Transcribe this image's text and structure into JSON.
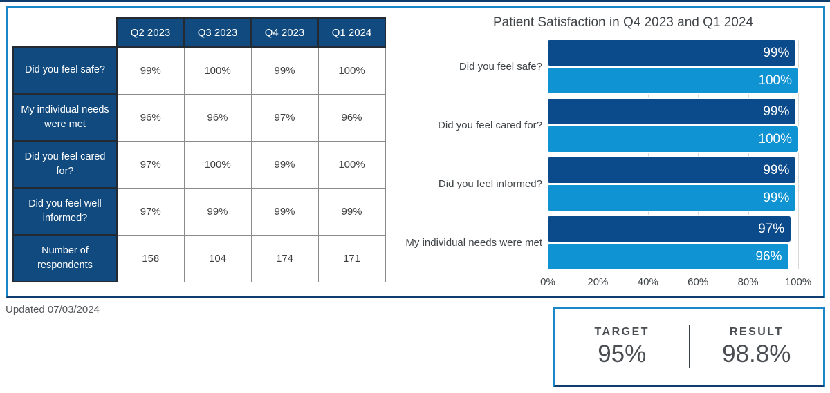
{
  "colors": {
    "dark_navy": "#0c4b8b",
    "light_blue": "#0f93d2",
    "table_navy": "#114a7f",
    "panel_border_blue": "#1a86c8",
    "panel_border_navy": "#0e3d6e",
    "navy_cell_divider": "#232a31",
    "table_border_gray": "#8a8a8a",
    "gridline": "#d9d9d9",
    "text_dark": "#3f4448",
    "text_gray": "#53565a"
  },
  "table": {
    "columns": [
      "Q2 2023",
      "Q3 2023",
      "Q4 2023",
      "Q1 2024"
    ],
    "rows": [
      {
        "label": "Did you feel safe?",
        "values": [
          "99%",
          "100%",
          "99%",
          "100%"
        ]
      },
      {
        "label": "My individual needs were met",
        "values": [
          "96%",
          "96%",
          "97%",
          "96%"
        ]
      },
      {
        "label": "Did you feel cared for?",
        "values": [
          "97%",
          "100%",
          "99%",
          "100%"
        ]
      },
      {
        "label": "Did you feel well informed?",
        "values": [
          "97%",
          "99%",
          "99%",
          "99%"
        ]
      },
      {
        "label": "Number of respondents",
        "values": [
          "158",
          "104",
          "174",
          "171"
        ]
      }
    ]
  },
  "chart_data": {
    "type": "bar",
    "orientation": "horizontal",
    "title": "Patient Satisfaction in Q4 2023 and Q1 2024",
    "categories": [
      "Did you feel safe?",
      "Did you feel cared for?",
      "Did you feel informed?",
      "My individual needs were met"
    ],
    "series": [
      {
        "name": "Q4 2023",
        "color": "#0c4b8b",
        "values": [
          99,
          99,
          99,
          97
        ]
      },
      {
        "name": "Q1 2024",
        "color": "#0f93d2",
        "values": [
          100,
          100,
          99,
          96
        ]
      }
    ],
    "xlim": [
      0,
      100
    ],
    "x_ticks": [
      "0%",
      "20%",
      "40%",
      "60%",
      "80%",
      "100%"
    ],
    "layout": {
      "legend": "none",
      "value_labels": "inside-end",
      "grid": "vertical"
    }
  },
  "footer": {
    "updated": "Updated 07/03/2024"
  },
  "kpi": {
    "target_label": "TARGET",
    "target_value": "95%",
    "result_label": "RESULT",
    "result_value": "98.8%"
  }
}
